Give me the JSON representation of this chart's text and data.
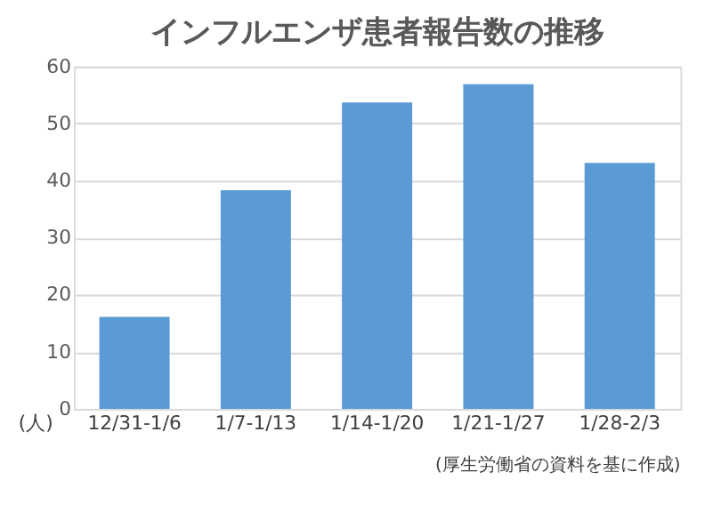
{
  "chart_data": {
    "type": "bar",
    "title": "インフルエンザ患者報告数の推移",
    "ylabel": "(人)",
    "categories": [
      "12/31-1/6",
      "1/7-1/13",
      "1/14-1/20",
      "1/21-1/27",
      "1/28-2/3"
    ],
    "values": [
      16.1,
      38.3,
      53.7,
      56.9,
      43.1
    ],
    "color": "#5b9bd5",
    "ylim": [
      0,
      60
    ],
    "yticks": [
      0,
      10,
      20,
      30,
      40,
      50,
      60
    ],
    "grid": "y",
    "annotations": [
      "(厚生労働省の資料を基に作成)"
    ]
  }
}
